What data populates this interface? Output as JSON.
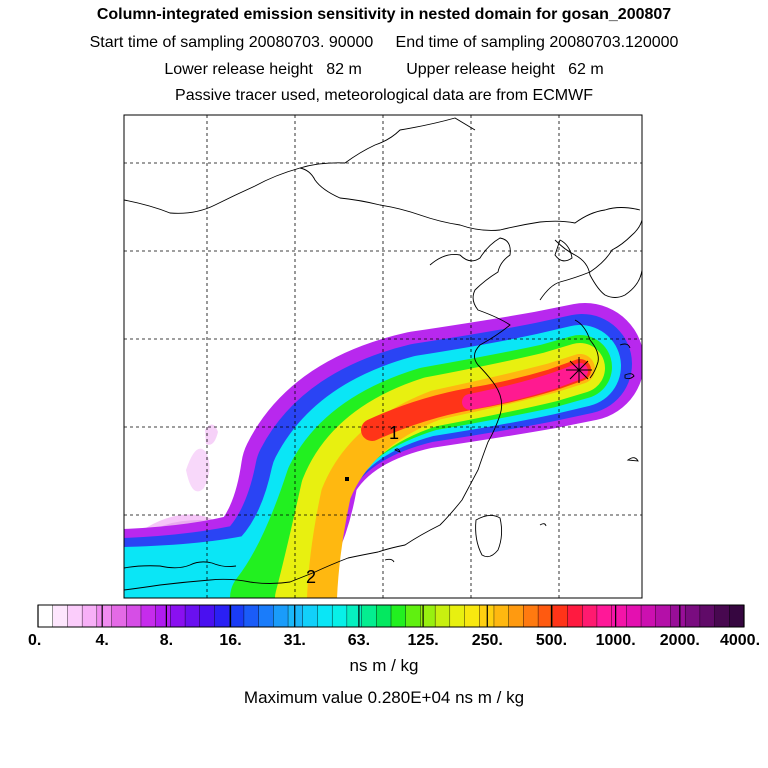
{
  "title": "Column-integrated emission sensitivity in nested domain for gosan_200807",
  "sampling_line": "Start time of sampling 20080703. 90000     End time of sampling 20080703.120000",
  "release_line": "Lower release height   82 m          Upper release height   62 m",
  "tracer_line": "Passive tracer used, meteorological data are from ECMWF",
  "map": {
    "markers": [
      "1",
      "2"
    ],
    "receptor": "receptor-star"
  },
  "legend": {
    "tick_labels": [
      "0.",
      "4.",
      "8.",
      "16.",
      "31.",
      "63.",
      "125.",
      "250.",
      "500.",
      "1000.",
      "2000.",
      "4000."
    ],
    "colors": [
      "#ffffff",
      "#fde6fd",
      "#fbcdfb",
      "#f7b0f7",
      "#f08cf0",
      "#e46ae6",
      "#d64ee6",
      "#c62cec",
      "#b01cf0",
      "#8a10f0",
      "#6a10f0",
      "#4a10f0",
      "#2a20f4",
      "#1a3cf6",
      "#1a5cf8",
      "#1a7cfa",
      "#1a9cfa",
      "#1ab8fa",
      "#12d0fa",
      "#0ae6f6",
      "#08f0e8",
      "#06f0c0",
      "#04ee90",
      "#04e860",
      "#22f020",
      "#60f010",
      "#98f010",
      "#c8f010",
      "#e8f010",
      "#f8e810",
      "#ffd010",
      "#ffb810",
      "#ff9a10",
      "#ff7a10",
      "#ff5a10",
      "#ff3418",
      "#ff1a40",
      "#ff1a70",
      "#ff1898",
      "#f414a8",
      "#e410b0",
      "#cc10b0",
      "#b410a8",
      "#980e98",
      "#7a0c80",
      "#600a68",
      "#480850",
      "#360640"
    ],
    "units": "ns m / kg",
    "max_value_line": "Maximum value  0.280E+04 ns m / kg"
  }
}
